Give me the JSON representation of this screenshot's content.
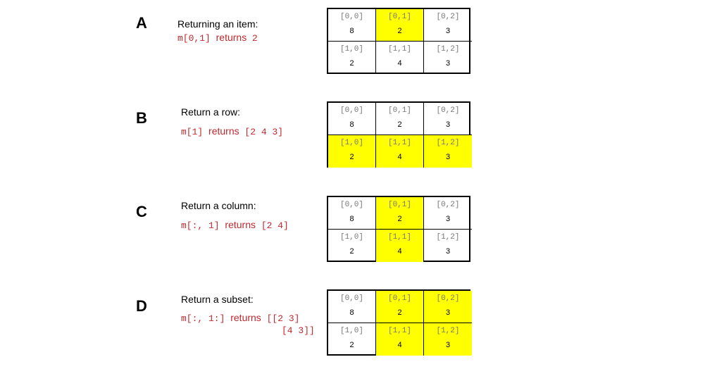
{
  "panels": [
    {
      "letter": "A",
      "title": "Returning an item:",
      "expr": "m[0,1]",
      "returns": "returns",
      "result": "2",
      "result2": "",
      "cells": [
        {
          "index": "[0,0]",
          "value": "8",
          "highlight": false
        },
        {
          "index": "[0,1]",
          "value": "2",
          "highlight": true
        },
        {
          "index": "[0,2]",
          "value": "3",
          "highlight": false
        },
        {
          "index": "[1,0]",
          "value": "2",
          "highlight": false
        },
        {
          "index": "[1,1]",
          "value": "4",
          "highlight": false
        },
        {
          "index": "[1,2]",
          "value": "3",
          "highlight": false
        }
      ]
    },
    {
      "letter": "B",
      "title": "Return a row:",
      "expr": "m[1]",
      "returns": "returns",
      "result": "[2 4 3]",
      "result2": "",
      "cells": [
        {
          "index": "[0,0]",
          "value": "8",
          "highlight": false
        },
        {
          "index": "[0,1]",
          "value": "2",
          "highlight": false
        },
        {
          "index": "[0,2]",
          "value": "3",
          "highlight": false
        },
        {
          "index": "[1,0]",
          "value": "2",
          "highlight": true
        },
        {
          "index": "[1,1]",
          "value": "4",
          "highlight": true
        },
        {
          "index": "[1,2]",
          "value": "3",
          "highlight": true
        }
      ]
    },
    {
      "letter": "C",
      "title": "Return a column:",
      "expr": "m[:, 1]",
      "returns": "returns",
      "result": "[2 4]",
      "result2": "",
      "cells": [
        {
          "index": "[0,0]",
          "value": "8",
          "highlight": false
        },
        {
          "index": "[0,1]",
          "value": "2",
          "highlight": true
        },
        {
          "index": "[0,2]",
          "value": "3",
          "highlight": false
        },
        {
          "index": "[1,0]",
          "value": "2",
          "highlight": false
        },
        {
          "index": "[1,1]",
          "value": "4",
          "highlight": true
        },
        {
          "index": "[1,2]",
          "value": "3",
          "highlight": false
        }
      ]
    },
    {
      "letter": "D",
      "title": "Return a subset:",
      "expr": "m[:, 1:]",
      "returns": "returns",
      "result": "[[2 3]",
      "result2": "[4 3]]",
      "cells": [
        {
          "index": "[0,0]",
          "value": "8",
          "highlight": false
        },
        {
          "index": "[0,1]",
          "value": "2",
          "highlight": true
        },
        {
          "index": "[0,2]",
          "value": "3",
          "highlight": true
        },
        {
          "index": "[1,0]",
          "value": "2",
          "highlight": false
        },
        {
          "index": "[1,1]",
          "value": "4",
          "highlight": true
        },
        {
          "index": "[1,2]",
          "value": "3",
          "highlight": true
        }
      ]
    }
  ]
}
